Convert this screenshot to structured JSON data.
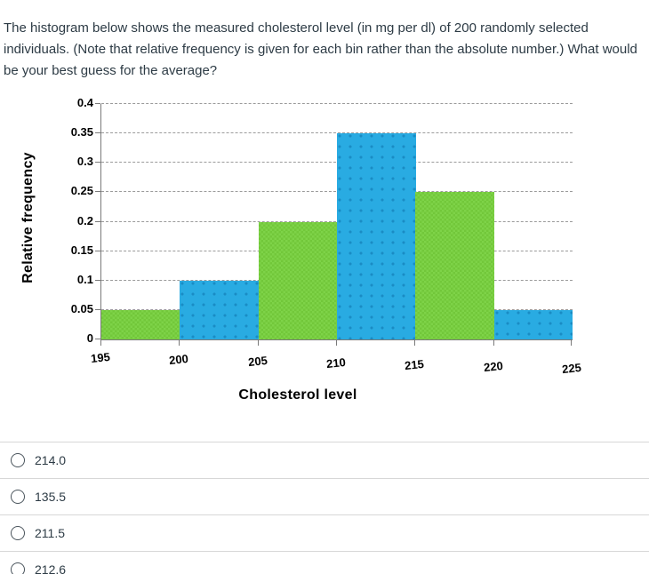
{
  "question": {
    "text": "The histogram below shows the measured cholesterol level (in mg per dl) of 200 randomly selected individuals. (Note that relative frequency is given for each bin rather than the absolute number.) What would be your best guess for the average?"
  },
  "chart_data": {
    "type": "bar",
    "title": "",
    "xlabel": "Cholesterol level",
    "ylabel": "Relative frequency",
    "bin_edges": [
      195,
      200,
      205,
      210,
      215,
      220,
      225
    ],
    "x_tick_labels": [
      "195",
      "200",
      "205",
      "210",
      "215",
      "220",
      "225"
    ],
    "values": [
      0.05,
      0.1,
      0.2,
      0.35,
      0.25,
      0.05
    ],
    "bar_colors": [
      "green",
      "blue",
      "green",
      "blue",
      "green",
      "blue"
    ],
    "color_map": {
      "green": "#7ED348",
      "blue": "#29ABE2"
    },
    "ylim": [
      0,
      0.4
    ],
    "y_tick_labels": [
      "0",
      "0.05",
      "0.1",
      "0.15",
      "0.2",
      "0.25",
      "0.3",
      "0.35",
      "0.4"
    ],
    "grid": true,
    "legend": "none"
  },
  "options": [
    {
      "label": "214.0"
    },
    {
      "label": "135.5"
    },
    {
      "label": "211.5"
    },
    {
      "label": "212.6"
    }
  ],
  "colors": {
    "text": "#2d3b45",
    "divider": "#d7d7d7",
    "axis": "#7a7a7a",
    "gridline": "#9b9b9b"
  }
}
